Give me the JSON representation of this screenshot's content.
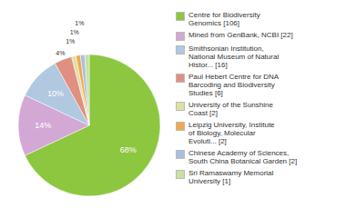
{
  "chart_data": {
    "type": "pie",
    "categories": [
      "Centre for Biodiversity\nGenomics [106]",
      "Mined from GenBank, NCBI [22]",
      "Smithsonian Institution,\nNational Museum of Natural\nHistor... [16]",
      "Paul Hebert Centre for DNA\nBarcoding and Biodiversity\nStudies [6]",
      "University of the Sunshine\nCoast [2]",
      "Leipzig University, Institute\nof Biology, Molecular\nEvoluti... [2]",
      "Chinese Academy of Sciences,\nSouth China Botanical Garden [2]",
      "Sri Ramaswamy Memorial\nUniversity [1]"
    ],
    "values": [
      68,
      14,
      10,
      4,
      1,
      1,
      1,
      1
    ],
    "value_labels": [
      "68%",
      "14%",
      "10%",
      "4%",
      "1%",
      "1%",
      "1%",
      null
    ],
    "colors": [
      "#8dc63f",
      "#d4a8d4",
      "#b0c8e0",
      "#e09080",
      "#e0e0a0",
      "#f0a850",
      "#a8c0e0",
      "#c8e0a0"
    ],
    "data_labels": true
  }
}
